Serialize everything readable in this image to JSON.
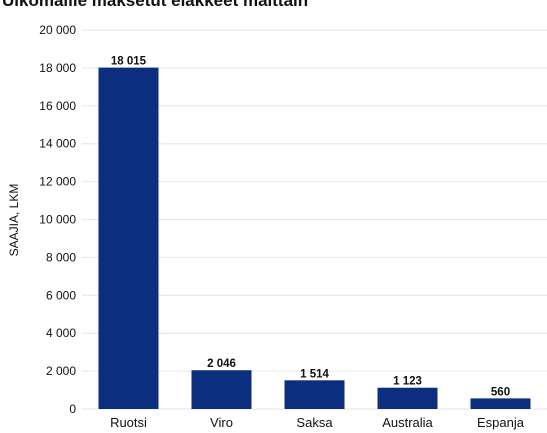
{
  "chart_data": {
    "type": "bar",
    "title": "Ulkomaille maksetut eläkkeet maittain",
    "ylabel": "SAAJIA, LKM",
    "xlabel": "",
    "categories": [
      "Ruotsi",
      "Viro",
      "Saksa",
      "Australia",
      "Espanja"
    ],
    "values": [
      18015,
      2046,
      1514,
      1123,
      560
    ],
    "value_labels": [
      "18 015",
      "2 046",
      "1 514",
      "1 123",
      "560"
    ],
    "ylim": [
      0,
      20000
    ],
    "yticks": [
      0,
      2000,
      4000,
      6000,
      8000,
      10000,
      12000,
      14000,
      16000,
      18000,
      20000
    ],
    "ytick_labels": [
      "0",
      "2 000",
      "4 000",
      "6 000",
      "8 000",
      "10 000",
      "12 000",
      "14 000",
      "16 000",
      "18 000",
      "20 000"
    ],
    "bar_color": "#0b2f7e",
    "grid": true,
    "legend": "none"
  }
}
